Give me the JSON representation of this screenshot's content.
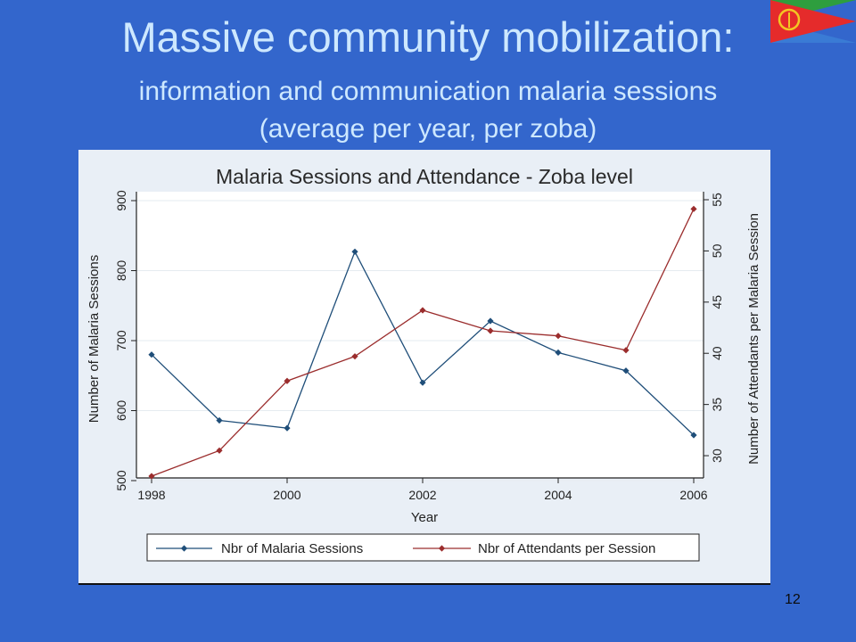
{
  "slide": {
    "title": "Massive community mobilization:",
    "subtitle_line1": "information and communication malaria sessions",
    "subtitle_line2": "(average per year, per zoba)",
    "page_number": "12"
  },
  "colors": {
    "background": "#3366cc",
    "title_text": "#cde8ff",
    "sessions_series": "#1f4e79",
    "attendants_series": "#9b2d2d"
  },
  "chart_data": {
    "type": "line",
    "title": "Malaria Sessions and Attendance - Zoba level",
    "xlabel": "Year",
    "ylabel": "Number of Malaria Sessions",
    "y2label": "Number of Attendants per Malaria Session",
    "x": [
      1998,
      1999,
      2000,
      2001,
      2002,
      2003,
      2004,
      2005,
      2006
    ],
    "xlim": [
      1998,
      2006
    ],
    "ylim": [
      500,
      900
    ],
    "y2lim": [
      28,
      55
    ],
    "x_ticks": [
      "1998",
      "2000",
      "2002",
      "2004",
      "2006"
    ],
    "y_ticks": [
      "500",
      "600",
      "700",
      "800",
      "900"
    ],
    "y2_ticks": [
      "30",
      "35",
      "40",
      "45",
      "50",
      "55"
    ],
    "grid": true,
    "legend_position": "bottom",
    "series": [
      {
        "name": "Nbr of Malaria Sessions",
        "axis": "left",
        "values": [
          680,
          586,
          575,
          827,
          640,
          728,
          683,
          657,
          565
        ]
      },
      {
        "name": "Nbr of Attendants per Session",
        "axis": "right",
        "values": [
          28.0,
          30.5,
          37.3,
          39.7,
          44.2,
          42.2,
          41.7,
          40.3,
          54.1
        ]
      }
    ]
  }
}
